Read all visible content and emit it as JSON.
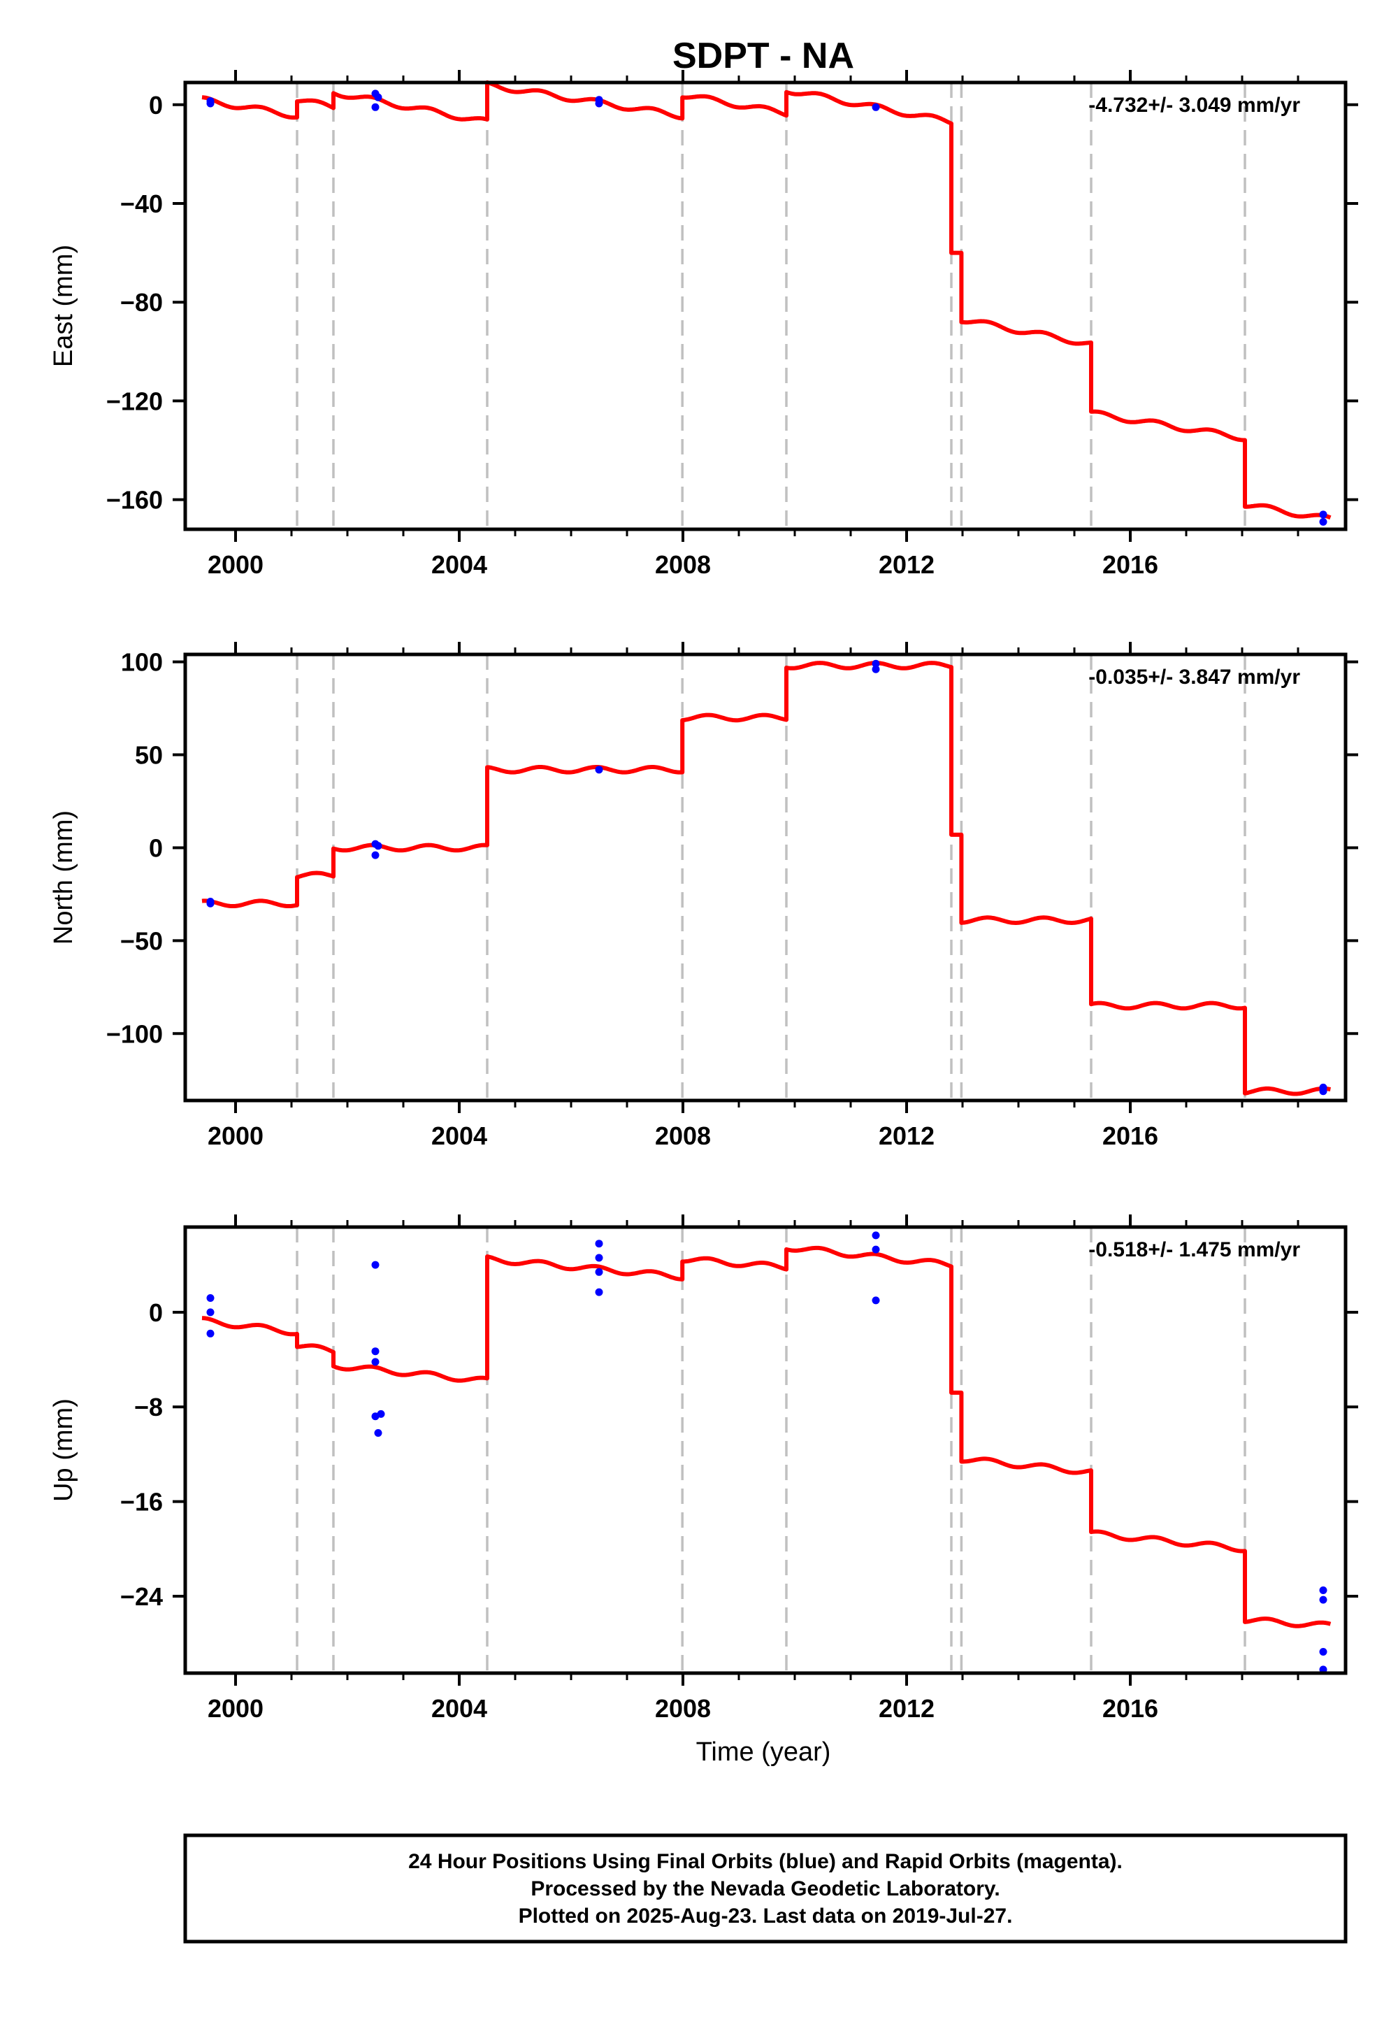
{
  "chart_data": {
    "type": "line",
    "title": "SDPT - NA",
    "xlabel": "Time (year)",
    "xlim": [
      1999.1,
      2019.85
    ],
    "xticks": [
      2000,
      2004,
      2008,
      2012,
      2016
    ],
    "x_tick_labels": [
      "2000",
      "2004",
      "2008",
      "2012",
      "2016"
    ],
    "x_minor_ticks": [
      2000,
      2001,
      2002,
      2003,
      2004,
      2005,
      2006,
      2007,
      2008,
      2009,
      2010,
      2011,
      2012,
      2013,
      2014,
      2015,
      2016,
      2017,
      2018,
      2019
    ],
    "step_lines": [
      2001.1,
      2001.75,
      2004.5,
      2007.99,
      2009.85,
      2012.8,
      2012.98,
      2015.3,
      2018.05
    ],
    "colors": {
      "model": "#ff0000",
      "final_orbits": "#0000ff",
      "step_lines": "#c0c0c0",
      "frame": "#000000"
    },
    "panels": [
      {
        "ylabel": "East (mm)",
        "rate_text": "-4.732+/- 3.049 mm/yr",
        "ylim": [
          -172,
          9
        ],
        "yticks": [
          0,
          -40,
          -80,
          -120,
          -160
        ],
        "y_tick_labels": [
          "0",
          "−40",
          "−80",
          "−120",
          "−160"
        ],
        "model_segments": [
          {
            "x": [
              1999.4,
              2001.1
            ],
            "y": [
              2,
              -4.5
            ]
          },
          {
            "x": [
              2001.1,
              2001.75
            ],
            "y": [
              2,
              -1
            ]
          },
          {
            "x": [
              2001.75,
              2004.5
            ],
            "y": [
              5,
              -7
            ]
          },
          {
            "x": [
              2004.5,
              2007.99
            ],
            "y": [
              8,
              -4.5
            ]
          },
          {
            "x": [
              2007.99,
              2009.85
            ],
            "y": [
              4,
              -3.5
            ]
          },
          {
            "x": [
              2009.85,
              2012.8
            ],
            "y": [
              6,
              -7
            ]
          },
          {
            "x": [
              2012.8,
              2012.98
            ],
            "y": [
              -60,
              -60
            ]
          },
          {
            "x": [
              2012.98,
              2015.3
            ],
            "y": [
              -87,
              -97
            ]
          },
          {
            "x": [
              2015.3,
              2018.05
            ],
            "y": [
              -125,
              -135
            ]
          },
          {
            "x": [
              2018.05,
              2019.58
            ],
            "y": [
              -162,
              -168
            ]
          }
        ],
        "points": [
          {
            "x": 1999.55,
            "y": 1.5
          },
          {
            "x": 1999.55,
            "y": 0.5
          },
          {
            "x": 2002.5,
            "y": 4.5
          },
          {
            "x": 2002.55,
            "y": 3
          },
          {
            "x": 2002.5,
            "y": -1
          },
          {
            "x": 2006.5,
            "y": 2
          },
          {
            "x": 2006.5,
            "y": 0.5
          },
          {
            "x": 2011.45,
            "y": -1
          },
          {
            "x": 2019.45,
            "y": -166
          },
          {
            "x": 2019.45,
            "y": -169
          }
        ]
      },
      {
        "ylabel": "North (mm)",
        "rate_text": "-0.035+/- 3.847 mm/yr",
        "ylim": [
          -136,
          104
        ],
        "yticks": [
          100,
          50,
          0,
          -50,
          -100
        ],
        "y_tick_labels": [
          "100",
          "50",
          "0",
          "−50",
          "−100"
        ],
        "model_segments": [
          {
            "x": [
              1999.4,
              2001.1
            ],
            "y": [
              -30,
              -30
            ]
          },
          {
            "x": [
              2001.1,
              2001.75
            ],
            "y": [
              -15,
              -15
            ]
          },
          {
            "x": [
              2001.75,
              2004.5
            ],
            "y": [
              0,
              0
            ]
          },
          {
            "x": [
              2004.5,
              2007.99
            ],
            "y": [
              42,
              42
            ]
          },
          {
            "x": [
              2007.99,
              2009.85
            ],
            "y": [
              70,
              70
            ]
          },
          {
            "x": [
              2009.85,
              2012.8
            ],
            "y": [
              98,
              98
            ]
          },
          {
            "x": [
              2012.8,
              2012.98
            ],
            "y": [
              7,
              7
            ]
          },
          {
            "x": [
              2012.98,
              2015.3
            ],
            "y": [
              -39,
              -39
            ]
          },
          {
            "x": [
              2015.3,
              2018.05
            ],
            "y": [
              -85,
              -85
            ]
          },
          {
            "x": [
              2018.05,
              2019.58
            ],
            "y": [
              -131,
              -131
            ]
          }
        ],
        "points": [
          {
            "x": 1999.55,
            "y": -29
          },
          {
            "x": 1999.55,
            "y": -30
          },
          {
            "x": 2002.5,
            "y": 2
          },
          {
            "x": 2002.55,
            "y": 1
          },
          {
            "x": 2002.5,
            "y": -4
          },
          {
            "x": 2006.5,
            "y": 42
          },
          {
            "x": 2011.45,
            "y": 99
          },
          {
            "x": 2011.45,
            "y": 96
          },
          {
            "x": 2019.45,
            "y": -129
          },
          {
            "x": 2019.45,
            "y": -131
          }
        ]
      },
      {
        "ylabel": "Up (mm)",
        "rate_text": "-0.518+/- 1.475 mm/yr",
        "ylim": [
          -30.5,
          7.2
        ],
        "yticks": [
          0,
          -8,
          -16,
          -24
        ],
        "y_tick_labels": [
          "0",
          "−8",
          "−16",
          "−24"
        ],
        "model_segments": [
          {
            "x": [
              1999.4,
              2001.1
            ],
            "y": [
              -0.7,
              -1.7
            ]
          },
          {
            "x": [
              2001.1,
              2001.75
            ],
            "y": [
              -2.8,
              -3.3
            ]
          },
          {
            "x": [
              2001.75,
              2004.5
            ],
            "y": [
              -4.5,
              -5.8
            ]
          },
          {
            "x": [
              2004.5,
              2007.99
            ],
            "y": [
              4.5,
              3
            ]
          },
          {
            "x": [
              2007.99,
              2009.85
            ],
            "y": [
              4.5,
              3.8
            ]
          },
          {
            "x": [
              2009.85,
              2012.8
            ],
            "y": [
              5.5,
              4
            ]
          },
          {
            "x": [
              2012.8,
              2012.98
            ],
            "y": [
              -6.8,
              -6.8
            ]
          },
          {
            "x": [
              2012.98,
              2015.3
            ],
            "y": [
              -12.4,
              -13.5
            ]
          },
          {
            "x": [
              2015.3,
              2018.05
            ],
            "y": [
              -18.7,
              -20
            ]
          },
          {
            "x": [
              2018.05,
              2019.58
            ],
            "y": [
              -26,
              -26.5
            ]
          }
        ],
        "points": [
          {
            "x": 1999.55,
            "y": 1.2
          },
          {
            "x": 1999.55,
            "y": 0
          },
          {
            "x": 1999.55,
            "y": -1.8
          },
          {
            "x": 2002.5,
            "y": 4
          },
          {
            "x": 2002.5,
            "y": -3.3
          },
          {
            "x": 2002.5,
            "y": -4.2
          },
          {
            "x": 2002.5,
            "y": -8.8
          },
          {
            "x": 2002.6,
            "y": -8.6
          },
          {
            "x": 2002.55,
            "y": -10.2
          },
          {
            "x": 2006.5,
            "y": 5.8
          },
          {
            "x": 2006.5,
            "y": 4.6
          },
          {
            "x": 2006.5,
            "y": 3.4
          },
          {
            "x": 2006.5,
            "y": 1.7
          },
          {
            "x": 2011.45,
            "y": 6.5
          },
          {
            "x": 2011.45,
            "y": 5.3
          },
          {
            "x": 2011.45,
            "y": 1
          },
          {
            "x": 2019.45,
            "y": -23.5
          },
          {
            "x": 2019.45,
            "y": -24.3
          },
          {
            "x": 2019.45,
            "y": -28.7
          },
          {
            "x": 2019.45,
            "y": -30.2
          }
        ]
      }
    ]
  },
  "footer": {
    "line1": "24 Hour Positions Using Final Orbits (blue) and Rapid Orbits (magenta).",
    "line2": "Processed by the Nevada Geodetic Laboratory.",
    "line3": "Plotted on 2025-Aug-23. Last data on 2019-Jul-27."
  }
}
